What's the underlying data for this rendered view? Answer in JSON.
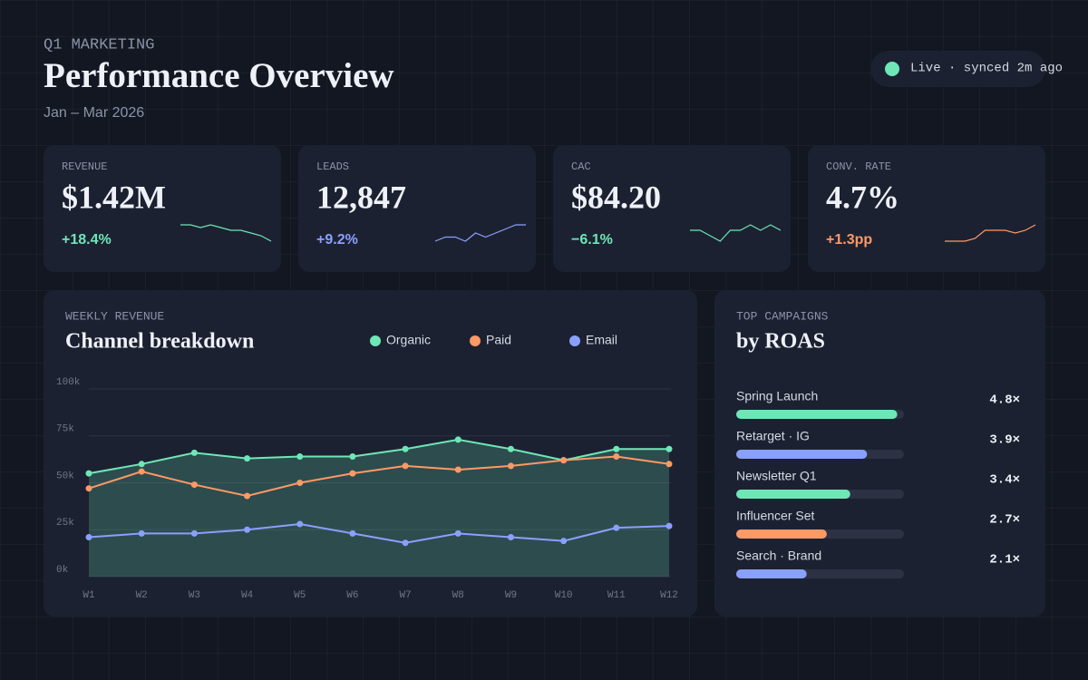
{
  "header": {
    "eyebrow": "Q1 MARKETING",
    "title": "Performance Overview",
    "subtitle": "Jan – Mar 2026"
  },
  "status": {
    "text": "Live · synced 2m ago",
    "color": "#6ee7b7"
  },
  "kpis": [
    {
      "label": "REVENUE",
      "value": "$1.42M",
      "change": "+18.4%",
      "color": "#6ee7b7",
      "sparkline": [
        55,
        55,
        54,
        55,
        54,
        53,
        53,
        52,
        51,
        49
      ]
    },
    {
      "label": "LEADS",
      "value": "12,847",
      "change": "+9.2%",
      "color": "#8aa0ff",
      "sparkline": [
        50,
        51,
        51,
        50,
        52,
        51,
        52,
        53,
        54,
        54
      ]
    },
    {
      "label": "CAC",
      "value": "$84.20",
      "change": "−6.1%",
      "color": "#6ee7b7",
      "sparkline": [
        51,
        51,
        50,
        49,
        51,
        51,
        52,
        51,
        52,
        51
      ]
    },
    {
      "label": "CONV. RATE",
      "value": "4.7%",
      "change": "+1.3pp",
      "color": "#ff9966",
      "sparkline": [
        50,
        50,
        50,
        51,
        54,
        54,
        54,
        53,
        54,
        56
      ]
    }
  ],
  "chart_data": {
    "type": "line",
    "eyebrow": "WEEKLY REVENUE",
    "title": "Channel breakdown",
    "categories": [
      "W1",
      "W2",
      "W3",
      "W4",
      "W5",
      "W6",
      "W7",
      "W8",
      "W9",
      "W10",
      "W11",
      "W12"
    ],
    "series": [
      {
        "name": "Organic",
        "color": "#6ee7b7",
        "area": true,
        "values": [
          55,
          60,
          66,
          63,
          64,
          64,
          68,
          73,
          68,
          62,
          68,
          68
        ]
      },
      {
        "name": "Paid",
        "color": "#ff9966",
        "area": false,
        "values": [
          47,
          56,
          49,
          43,
          50,
          55,
          59,
          57,
          59,
          62,
          64,
          60
        ]
      },
      {
        "name": "Email",
        "color": "#8aa0ff",
        "area": false,
        "values": [
          21,
          23,
          23,
          25,
          28,
          23,
          18,
          23,
          21,
          19,
          26,
          27
        ]
      }
    ],
    "ylim": [
      0,
      100
    ],
    "yticks": [
      {
        "value": 0,
        "label": "0k"
      },
      {
        "value": 25,
        "label": "25k"
      },
      {
        "value": 50,
        "label": "50k"
      },
      {
        "value": 75,
        "label": "75k"
      },
      {
        "value": 100,
        "label": "100k"
      }
    ],
    "grid": true
  },
  "campaigns": {
    "eyebrow": "TOP CAMPAIGNS",
    "title": "by ROAS",
    "xlim": [
      0,
      5
    ],
    "names": [
      "Spring Launch",
      "Retarget · IG",
      "Newsletter Q1",
      "Influencer Set",
      "Search · Brand"
    ],
    "values": [
      4.8,
      3.9,
      3.4,
      2.7,
      2.1
    ],
    "value_labels": [
      "4.8×",
      "3.9×",
      "3.4×",
      "2.7×",
      "2.1×"
    ],
    "colors": [
      "#6ee7b7",
      "#8aa0ff",
      "#6ee7b7",
      "#ff9966",
      "#8aa0ff"
    ]
  }
}
